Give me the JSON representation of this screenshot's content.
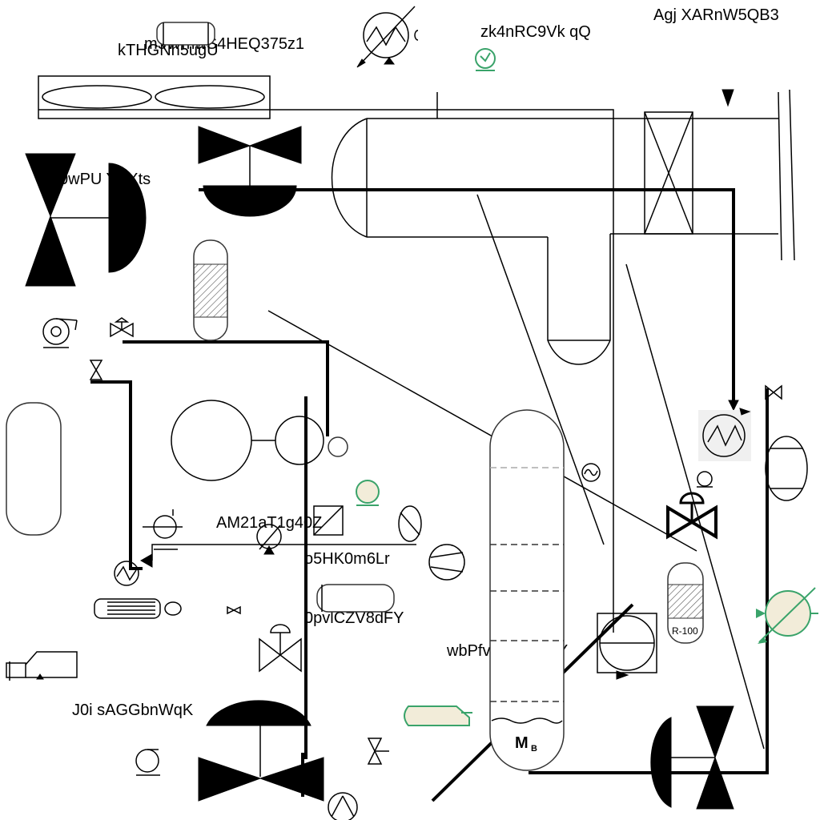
{
  "labels": {
    "l1": "kTHGNh5ugU",
    "l2": "m3WmwS4HEQ375z1",
    "l3": "zk4nRC9Vk qQ",
    "l4": "Agj XARnW5QB3",
    "l5": "0wPU  YKXts",
    "l6": "AM21aT1g40Z",
    "l7": "o5HK0m6Lr",
    "l8": "0pvlCZV8dFY",
    "l9": "wbPfv2SW0NCY",
    "l10": "J0i sAGGbnWqK"
  },
  "tags": {
    "reactor": "R-100",
    "motor_main": "M",
    "motor_sub": "B"
  },
  "colors": {
    "line": "#000000",
    "accent_green": "#3aa36a",
    "fill_beige": "#f2ecd9"
  }
}
